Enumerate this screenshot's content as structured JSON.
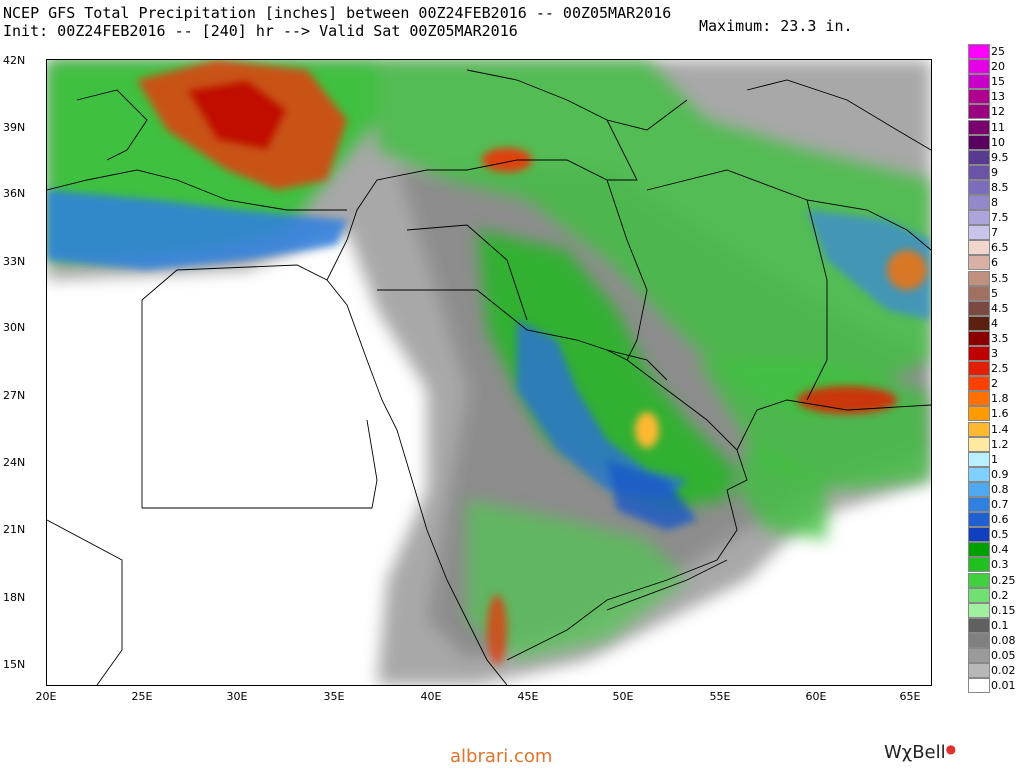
{
  "header": {
    "title_line1": "NCEP GFS Total Precipitation [inches] between 00Z24FEB2016 -- 00Z05MAR2016",
    "title_line2": "Init: 00Z24FEB2016 -- [240] hr --> Valid Sat 00Z05MAR2016",
    "maximum": "Maximum: 23.3 in."
  },
  "axes": {
    "lat_ticks": [
      "42N",
      "39N",
      "36N",
      "33N",
      "30N",
      "27N",
      "24N",
      "21N",
      "18N",
      "15N"
    ],
    "lon_ticks": [
      "20E",
      "25E",
      "30E",
      "35E",
      "40E",
      "45E",
      "50E",
      "55E",
      "60E",
      "65E"
    ]
  },
  "legend": {
    "items": [
      {
        "label": "25",
        "color": "#ff00ff"
      },
      {
        "label": "20",
        "color": "#e600e6"
      },
      {
        "label": "15",
        "color": "#c800c8"
      },
      {
        "label": "13",
        "color": "#b00090"
      },
      {
        "label": "12",
        "color": "#9a0080"
      },
      {
        "label": "11",
        "color": "#7a0070"
      },
      {
        "label": "10",
        "color": "#5a0060"
      },
      {
        "label": "9.5",
        "color": "#5a3a90"
      },
      {
        "label": "9",
        "color": "#6a54a8"
      },
      {
        "label": "8.5",
        "color": "#7d6cbc"
      },
      {
        "label": "8",
        "color": "#9488cc"
      },
      {
        "label": "7.5",
        "color": "#aca4dc"
      },
      {
        "label": "7",
        "color": "#c8c4ec"
      },
      {
        "label": "6.5",
        "color": "#f2d6cc"
      },
      {
        "label": "6",
        "color": "#d8b0a4"
      },
      {
        "label": "5.5",
        "color": "#c09080"
      },
      {
        "label": "5",
        "color": "#a07060"
      },
      {
        "label": "4.5",
        "color": "#7a4a40"
      },
      {
        "label": "4",
        "color": "#5a2010"
      },
      {
        "label": "3.5",
        "color": "#8a0000"
      },
      {
        "label": "3",
        "color": "#c00000"
      },
      {
        "label": "2.5",
        "color": "#e02000"
      },
      {
        "label": "2",
        "color": "#ff4000"
      },
      {
        "label": "1.8",
        "color": "#ff7000"
      },
      {
        "label": "1.6",
        "color": "#ff9a00"
      },
      {
        "label": "1.4",
        "color": "#ffb830"
      },
      {
        "label": "1.2",
        "color": "#ffe8a0"
      },
      {
        "label": "1",
        "color": "#b8f0ff"
      },
      {
        "label": "0.9",
        "color": "#80d0ff"
      },
      {
        "label": "0.8",
        "color": "#50a8f0"
      },
      {
        "label": "0.7",
        "color": "#3080e0"
      },
      {
        "label": "0.6",
        "color": "#2060d0"
      },
      {
        "label": "0.5",
        "color": "#1040c0"
      },
      {
        "label": "0.4",
        "color": "#00a000"
      },
      {
        "label": "0.3",
        "color": "#20c020"
      },
      {
        "label": "0.25",
        "color": "#40d040"
      },
      {
        "label": "0.2",
        "color": "#70e070"
      },
      {
        "label": "0.15",
        "color": "#a0f0a0"
      },
      {
        "label": "0.1",
        "color": "#606060"
      },
      {
        "label": "0.08",
        "color": "#808080"
      },
      {
        "label": "0.05",
        "color": "#9a9a9a"
      },
      {
        "label": "0.02",
        "color": "#b8b8b8"
      },
      {
        "label": "0.01",
        "color": "#ffffff"
      }
    ]
  },
  "footer": {
    "credit": "albrari.com",
    "brand": "WχBell"
  }
}
